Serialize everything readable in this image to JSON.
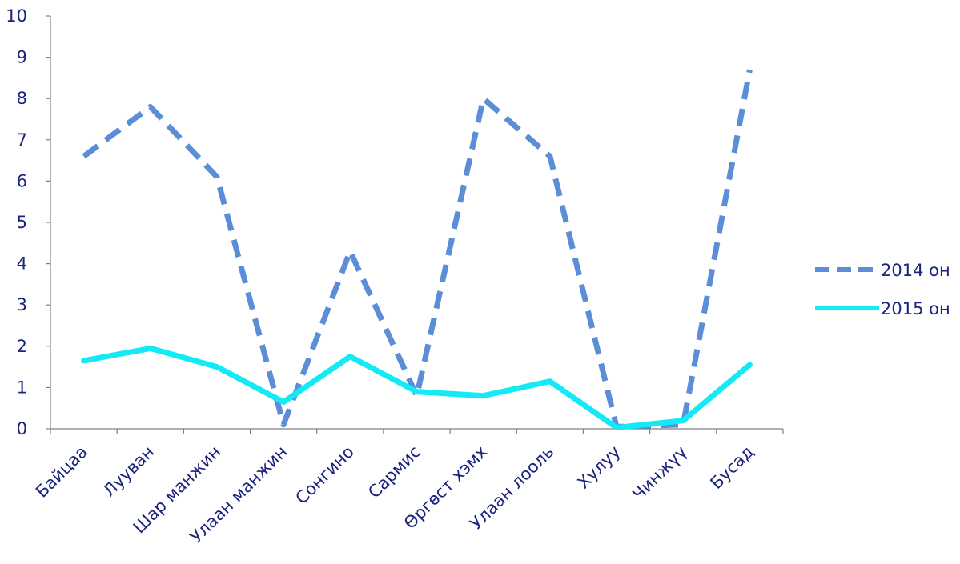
{
  "chart_data": {
    "type": "line",
    "categories": [
      "Байцаа",
      "Лууван",
      "Шар манжин",
      "Улаан манжин",
      "Сонгино",
      "Сармис",
      "Өргөст хэмх",
      "Улаан лооль",
      "Хулуу",
      "Чинжүү",
      "Бусад"
    ],
    "series": [
      {
        "name": "2014 он",
        "values": [
          6.6,
          7.8,
          6.1,
          0.1,
          4.3,
          0.8,
          8.0,
          6.6,
          0.05,
          0.1,
          8.7
        ],
        "color": "#5b8ed6",
        "style": "dashed"
      },
      {
        "name": "2015 он",
        "values": [
          1.65,
          1.95,
          1.5,
          0.65,
          1.75,
          0.9,
          0.8,
          1.15,
          0.03,
          0.2,
          1.55
        ],
        "color": "#14eaf5",
        "style": "solid"
      }
    ],
    "ylim": [
      0,
      10
    ],
    "yticks": [
      0,
      1,
      2,
      3,
      4,
      5,
      6,
      7,
      8,
      9,
      10
    ],
    "grid": false,
    "legend": "right",
    "xlabel": "",
    "ylabel": "",
    "title": ""
  }
}
